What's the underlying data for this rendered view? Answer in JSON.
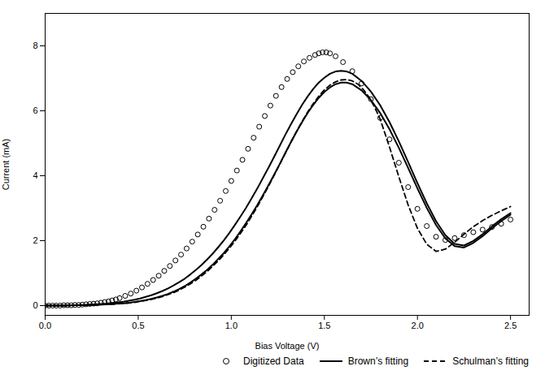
{
  "chart_data": {
    "type": "line",
    "xlabel": "Bias Voltage (V)",
    "ylabel": "Current (mA)",
    "xlim": [
      0.0,
      2.6
    ],
    "ylim": [
      -0.3,
      9.0
    ],
    "xticks": [
      {
        "value": 0.0,
        "label": "0.0"
      },
      0.5,
      {
        "value": 1.0,
        "label": "1.0"
      },
      1.5,
      {
        "value": 2.0,
        "label": "2.0"
      },
      2.5
    ],
    "yticks": [
      0,
      2,
      4,
      6,
      8
    ],
    "grid": false,
    "legend": "lower right",
    "series": [
      {
        "name": "Digitized Data",
        "type": "scatter",
        "marker": "circle",
        "color": "#000000",
        "x": [
          0.0,
          0.02,
          0.04,
          0.06,
          0.08,
          0.1,
          0.12,
          0.14,
          0.16,
          0.18,
          0.2,
          0.22,
          0.24,
          0.26,
          0.28,
          0.3,
          0.32,
          0.34,
          0.36,
          0.38,
          0.4,
          0.43,
          0.46,
          0.49,
          0.52,
          0.55,
          0.58,
          0.61,
          0.64,
          0.67,
          0.7,
          0.73,
          0.76,
          0.79,
          0.82,
          0.85,
          0.88,
          0.91,
          0.94,
          0.97,
          1.0,
          1.03,
          1.06,
          1.09,
          1.12,
          1.15,
          1.18,
          1.21,
          1.24,
          1.27,
          1.3,
          1.33,
          1.36,
          1.39,
          1.42,
          1.45,
          1.47,
          1.49,
          1.51,
          1.53,
          1.56,
          1.6,
          1.65,
          1.7,
          1.75,
          1.8,
          1.85,
          1.9,
          1.95,
          2.0,
          2.05,
          2.1,
          2.15,
          2.2,
          2.25,
          2.3,
          2.35,
          2.4,
          2.45,
          2.5
        ],
        "values": [
          0.0,
          0.0,
          0.0,
          0.0,
          0.0,
          0.01,
          0.01,
          0.01,
          0.02,
          0.02,
          0.03,
          0.04,
          0.05,
          0.06,
          0.07,
          0.09,
          0.11,
          0.13,
          0.16,
          0.19,
          0.23,
          0.3,
          0.37,
          0.46,
          0.56,
          0.67,
          0.79,
          0.92,
          1.07,
          1.22,
          1.39,
          1.57,
          1.76,
          1.97,
          2.19,
          2.43,
          2.68,
          2.95,
          3.23,
          3.53,
          3.84,
          4.16,
          4.49,
          4.83,
          5.17,
          5.51,
          5.84,
          6.16,
          6.46,
          6.73,
          6.98,
          7.19,
          7.37,
          7.52,
          7.63,
          7.72,
          7.77,
          7.8,
          7.8,
          7.77,
          7.68,
          7.5,
          7.22,
          6.84,
          6.36,
          5.78,
          5.12,
          4.4,
          3.65,
          2.98,
          2.45,
          2.12,
          2.02,
          2.08,
          2.17,
          2.26,
          2.34,
          2.42,
          2.52,
          2.65
        ]
      },
      {
        "name": "Brown’s fitting",
        "type": "line",
        "line_style": "solid",
        "color": "#000000",
        "x": [
          0.0,
          0.03,
          0.06,
          0.09,
          0.12,
          0.15,
          0.18,
          0.21,
          0.24,
          0.27,
          0.3,
          0.33,
          0.36,
          0.39,
          0.42,
          0.45,
          0.48,
          0.51,
          0.54,
          0.57,
          0.6,
          0.63,
          0.66,
          0.69,
          0.72,
          0.75,
          0.78,
          0.81,
          0.84,
          0.87,
          0.9,
          0.93,
          0.96,
          0.99,
          1.02,
          1.05,
          1.08,
          1.11,
          1.14,
          1.17,
          1.2,
          1.23,
          1.26,
          1.29,
          1.32,
          1.35,
          1.38,
          1.41,
          1.44,
          1.47,
          1.5,
          1.53,
          1.56,
          1.59,
          1.62,
          1.65,
          1.7,
          1.75,
          1.8,
          1.85,
          1.9,
          1.95,
          2.0,
          2.05,
          2.1,
          2.15,
          2.2,
          2.25,
          2.3,
          2.35,
          2.4,
          2.45,
          2.5
        ],
        "values": [
          0.0,
          0.0,
          0.0,
          0.0,
          0.01,
          0.01,
          0.02,
          0.02,
          0.03,
          0.04,
          0.05,
          0.06,
          0.08,
          0.1,
          0.12,
          0.15,
          0.18,
          0.22,
          0.27,
          0.32,
          0.38,
          0.45,
          0.53,
          0.62,
          0.72,
          0.83,
          0.96,
          1.1,
          1.25,
          1.42,
          1.6,
          1.8,
          2.01,
          2.24,
          2.49,
          2.75,
          3.02,
          3.31,
          3.61,
          3.93,
          4.25,
          4.58,
          4.92,
          5.26,
          5.58,
          5.89,
          6.18,
          6.44,
          6.67,
          6.87,
          7.02,
          7.14,
          7.21,
          7.23,
          7.21,
          7.14,
          6.92,
          6.59,
          6.17,
          5.65,
          5.06,
          4.42,
          3.77,
          3.15,
          2.6,
          2.17,
          1.9,
          1.85,
          1.99,
          2.2,
          2.44,
          2.66,
          2.85
        ]
      },
      {
        "name": "Brown’s fitting",
        "type": "line",
        "line_style": "solid",
        "color": "#000000",
        "x": [
          0.0,
          0.03,
          0.06,
          0.09,
          0.12,
          0.15,
          0.18,
          0.21,
          0.24,
          0.27,
          0.3,
          0.33,
          0.36,
          0.39,
          0.42,
          0.45,
          0.48,
          0.51,
          0.54,
          0.57,
          0.6,
          0.63,
          0.66,
          0.69,
          0.72,
          0.75,
          0.78,
          0.81,
          0.84,
          0.87,
          0.9,
          0.93,
          0.96,
          0.99,
          1.02,
          1.05,
          1.08,
          1.11,
          1.14,
          1.17,
          1.2,
          1.23,
          1.26,
          1.29,
          1.32,
          1.35,
          1.38,
          1.41,
          1.44,
          1.47,
          1.5,
          1.53,
          1.56,
          1.59,
          1.62,
          1.65,
          1.7,
          1.75,
          1.8,
          1.85,
          1.9,
          1.95,
          2.0,
          2.05,
          2.1,
          2.15,
          2.2,
          2.25,
          2.3,
          2.35,
          2.4,
          2.45,
          2.5
        ],
        "values": [
          0.0,
          0.0,
          0.0,
          0.0,
          0.0,
          0.01,
          0.01,
          0.01,
          0.02,
          0.02,
          0.03,
          0.04,
          0.05,
          0.06,
          0.07,
          0.09,
          0.11,
          0.14,
          0.17,
          0.21,
          0.25,
          0.3,
          0.36,
          0.43,
          0.51,
          0.6,
          0.71,
          0.83,
          0.96,
          1.1,
          1.26,
          1.44,
          1.62,
          1.83,
          2.05,
          2.29,
          2.55,
          2.82,
          3.1,
          3.4,
          3.71,
          4.03,
          4.36,
          4.7,
          5.03,
          5.35,
          5.65,
          5.93,
          6.18,
          6.4,
          6.58,
          6.72,
          6.82,
          6.87,
          6.87,
          6.82,
          6.63,
          6.33,
          5.93,
          5.43,
          4.86,
          4.24,
          3.61,
          3.01,
          2.48,
          2.07,
          1.83,
          1.79,
          1.93,
          2.14,
          2.38,
          2.6,
          2.8
        ]
      },
      {
        "name": "Schulman’s fitting",
        "type": "line",
        "line_style": "dashed",
        "color": "#000000",
        "x": [
          0.0,
          0.03,
          0.06,
          0.09,
          0.12,
          0.15,
          0.18,
          0.21,
          0.24,
          0.27,
          0.3,
          0.33,
          0.36,
          0.39,
          0.42,
          0.45,
          0.48,
          0.51,
          0.54,
          0.57,
          0.6,
          0.63,
          0.66,
          0.69,
          0.72,
          0.75,
          0.78,
          0.81,
          0.84,
          0.87,
          0.9,
          0.93,
          0.96,
          0.99,
          1.02,
          1.05,
          1.08,
          1.11,
          1.14,
          1.17,
          1.2,
          1.23,
          1.26,
          1.29,
          1.32,
          1.35,
          1.38,
          1.41,
          1.44,
          1.47,
          1.5,
          1.53,
          1.56,
          1.59,
          1.62,
          1.65,
          1.68,
          1.71,
          1.74,
          1.77,
          1.8,
          1.85,
          1.9,
          1.95,
          2.0,
          2.05,
          2.1,
          2.15,
          2.2,
          2.25,
          2.3,
          2.35,
          2.4,
          2.45,
          2.5
        ],
        "values": [
          0.0,
          0.0,
          0.0,
          0.0,
          0.0,
          0.01,
          0.01,
          0.01,
          0.02,
          0.02,
          0.03,
          0.04,
          0.04,
          0.05,
          0.07,
          0.08,
          0.1,
          0.13,
          0.16,
          0.19,
          0.23,
          0.28,
          0.34,
          0.4,
          0.48,
          0.57,
          0.67,
          0.78,
          0.91,
          1.05,
          1.21,
          1.38,
          1.57,
          1.77,
          1.99,
          2.23,
          2.48,
          2.76,
          3.05,
          3.36,
          3.68,
          4.01,
          4.35,
          4.69,
          5.03,
          5.36,
          5.67,
          5.96,
          6.22,
          6.45,
          6.64,
          6.79,
          6.89,
          6.95,
          6.96,
          6.92,
          6.82,
          6.65,
          6.42,
          6.11,
          5.74,
          4.88,
          3.97,
          3.1,
          2.38,
          1.89,
          1.67,
          1.74,
          1.95,
          2.2,
          2.43,
          2.62,
          2.78,
          2.92,
          3.05
        ]
      }
    ]
  }
}
